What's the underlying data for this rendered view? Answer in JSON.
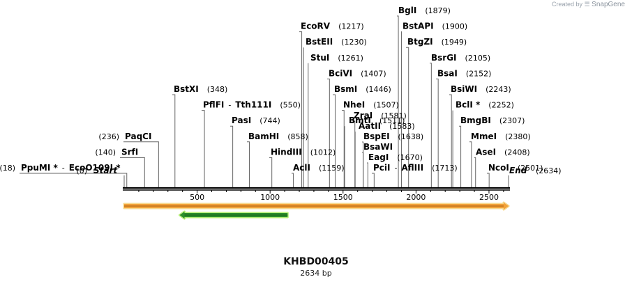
{
  "watermark": {
    "prefix": "Created by",
    "brand": "SnapGene"
  },
  "plasmid": {
    "name": "KHBD00405",
    "length_label": "2634 bp",
    "length": 2634
  },
  "colors": {
    "backbone": "#000000",
    "feature_forward_fill": "#f2a23a",
    "feature_forward_outline": "#f6d78b",
    "feature_reverse_fill": "#2c8f2c",
    "feature_reverse_outline": "#b9f07a",
    "leader": "#666666"
  },
  "chart_data": {
    "type": "restriction_map",
    "axis": {
      "min": 0,
      "max": 2634,
      "ticks": [
        500,
        1000,
        1500,
        2000,
        2500
      ]
    },
    "terminals": [
      {
        "name": "Start",
        "position": 0,
        "pos_label": "(0)"
      },
      {
        "name": "End",
        "position": 2634,
        "pos_label": "(2634)"
      }
    ],
    "features": [
      {
        "name": "forward-feature",
        "start": 0,
        "end": 2634,
        "direction": "forward"
      },
      {
        "name": "reverse-feature",
        "start": 380,
        "end": 1120,
        "direction": "reverse"
      }
    ],
    "sites": [
      {
        "name": "PpuMI *",
        "name2": "EcoO109I *",
        "position": 18,
        "pos_label": "(18)"
      },
      {
        "name": "SrfI",
        "position": 140,
        "pos_label": "(140)"
      },
      {
        "name": "PaqCI",
        "position": 236,
        "pos_label": "(236)"
      },
      {
        "name": "BstXI",
        "position": 348,
        "pos_label": "(348)"
      },
      {
        "name": "PflFI",
        "name2": "Tth111I",
        "position": 550,
        "pos_label": "(550)"
      },
      {
        "name": "PasI",
        "position": 744,
        "pos_label": "(744)"
      },
      {
        "name": "BamHI",
        "position": 858,
        "pos_label": "(858)"
      },
      {
        "name": "HindIII",
        "position": 1012,
        "pos_label": "(1012)"
      },
      {
        "name": "AclI",
        "position": 1159,
        "pos_label": "(1159)"
      },
      {
        "name": "EcoRV",
        "position": 1217,
        "pos_label": "(1217)"
      },
      {
        "name": "BstEII",
        "position": 1230,
        "pos_label": "(1230)"
      },
      {
        "name": "StuI",
        "position": 1261,
        "pos_label": "(1261)"
      },
      {
        "name": "BciVI",
        "position": 1407,
        "pos_label": "(1407)"
      },
      {
        "name": "BsmI",
        "position": 1446,
        "pos_label": "(1446)"
      },
      {
        "name": "NheI",
        "position": 1507,
        "pos_label": "(1507)"
      },
      {
        "name": "BmtI",
        "position": 1511,
        "pos_label": "(1511)"
      },
      {
        "name": "ZraI",
        "position": 1581,
        "pos_label": "(1581)"
      },
      {
        "name": "AatII",
        "position": 1583,
        "pos_label": "(1583)"
      },
      {
        "name": "BspEI",
        "position": 1638,
        "pos_label": "(1638)"
      },
      {
        "name": "BsaWI",
        "position": 1638,
        "pos_label": ""
      },
      {
        "name": "EagI",
        "position": 1670,
        "pos_label": "(1670)"
      },
      {
        "name": "PciI",
        "name2": "AflIII",
        "position": 1713,
        "pos_label": "(1713)"
      },
      {
        "name": "BglI",
        "position": 1879,
        "pos_label": "(1879)"
      },
      {
        "name": "BstAPI",
        "position": 1900,
        "pos_label": "(1900)"
      },
      {
        "name": "BtgZI",
        "position": 1949,
        "pos_label": "(1949)"
      },
      {
        "name": "BsrGI",
        "position": 2105,
        "pos_label": "(2105)"
      },
      {
        "name": "BsaI",
        "position": 2152,
        "pos_label": "(2152)"
      },
      {
        "name": "BsiWI",
        "position": 2243,
        "pos_label": "(2243)"
      },
      {
        "name": "BclI *",
        "position": 2252,
        "pos_label": "(2252)"
      },
      {
        "name": "BmgBI",
        "position": 2307,
        "pos_label": "(2307)"
      },
      {
        "name": "MmeI",
        "position": 2380,
        "pos_label": "(2380)"
      },
      {
        "name": "AseI",
        "position": 2408,
        "pos_label": "(2408)"
      },
      {
        "name": "NcoI",
        "position": 2501,
        "pos_label": "(2501)"
      }
    ]
  }
}
